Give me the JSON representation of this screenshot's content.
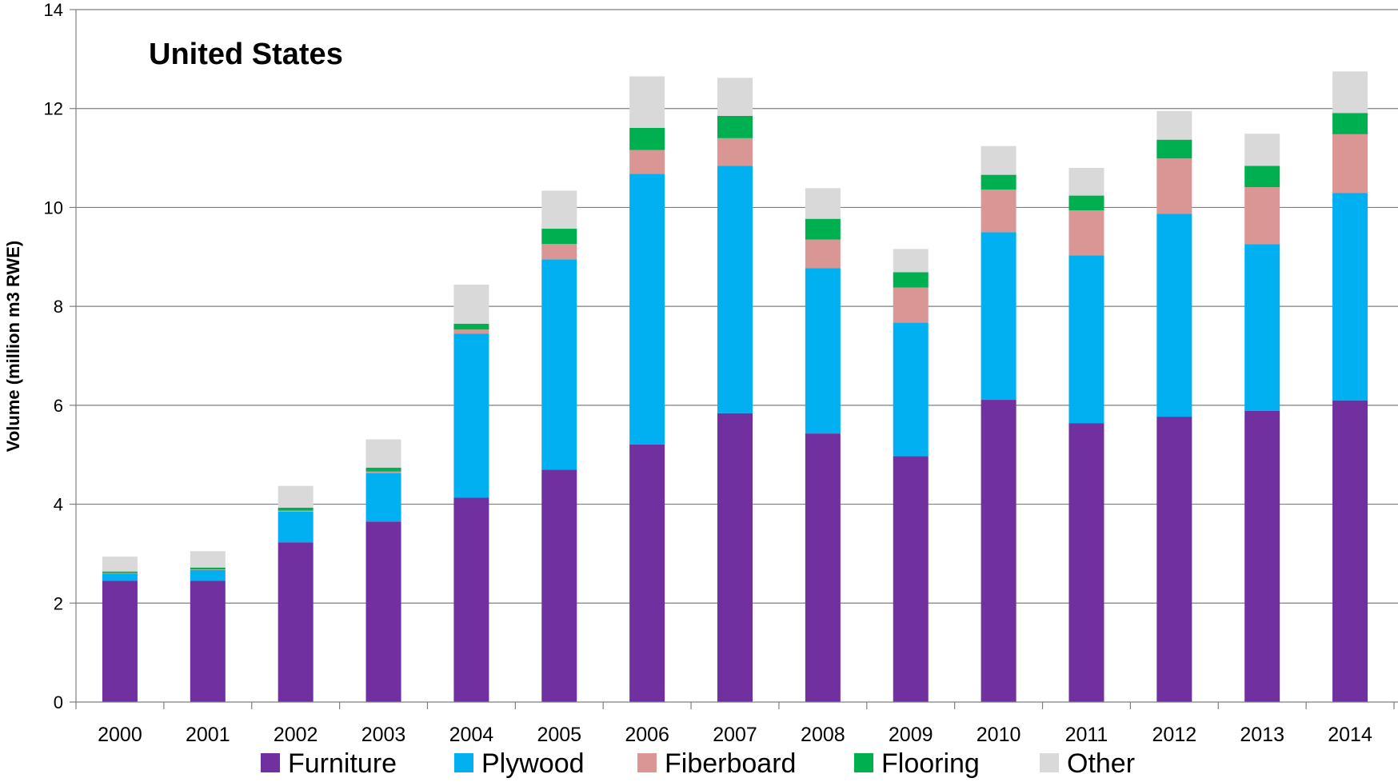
{
  "chart_data": {
    "type": "bar",
    "stacked": true,
    "title": "United States",
    "ylabel": "Volume (million m3 RWE)",
    "xlabel": "",
    "ylim": [
      0,
      14
    ],
    "yticks": [
      0,
      2,
      4,
      6,
      8,
      10,
      12,
      14
    ],
    "grid": true,
    "legend_position": "bottom",
    "categories": [
      "2000",
      "2001",
      "2002",
      "2003",
      "2004",
      "2005",
      "2006",
      "2007",
      "2008",
      "2009",
      "2010",
      "2011",
      "2012",
      "2013",
      "2014"
    ],
    "series": [
      {
        "name": "Furniture",
        "color": "#7030a0",
        "values": [
          2.45,
          2.45,
          3.23,
          3.65,
          4.13,
          4.7,
          5.21,
          5.84,
          5.43,
          4.97,
          6.11,
          5.64,
          5.77,
          5.89,
          6.1
        ]
      },
      {
        "name": "Plywood",
        "color": "#00b0f0",
        "values": [
          0.15,
          0.22,
          0.62,
          0.98,
          3.32,
          4.25,
          5.47,
          5.0,
          3.34,
          2.7,
          3.39,
          3.39,
          4.1,
          3.37,
          4.19
        ]
      },
      {
        "name": "Fiberboard",
        "color": "#da9694",
        "values": [
          0.01,
          0.01,
          0.02,
          0.03,
          0.08,
          0.31,
          0.48,
          0.56,
          0.58,
          0.71,
          0.86,
          0.91,
          1.12,
          1.15,
          1.19
        ]
      },
      {
        "name": "Flooring",
        "color": "#00b050",
        "values": [
          0.03,
          0.04,
          0.06,
          0.08,
          0.12,
          0.31,
          0.45,
          0.45,
          0.42,
          0.31,
          0.3,
          0.3,
          0.38,
          0.43,
          0.43
        ]
      },
      {
        "name": "Other",
        "color": "#d9d9d9",
        "values": [
          0.3,
          0.33,
          0.44,
          0.57,
          0.79,
          0.77,
          1.04,
          0.77,
          0.62,
          0.47,
          0.58,
          0.56,
          0.58,
          0.65,
          0.84
        ]
      }
    ]
  }
}
